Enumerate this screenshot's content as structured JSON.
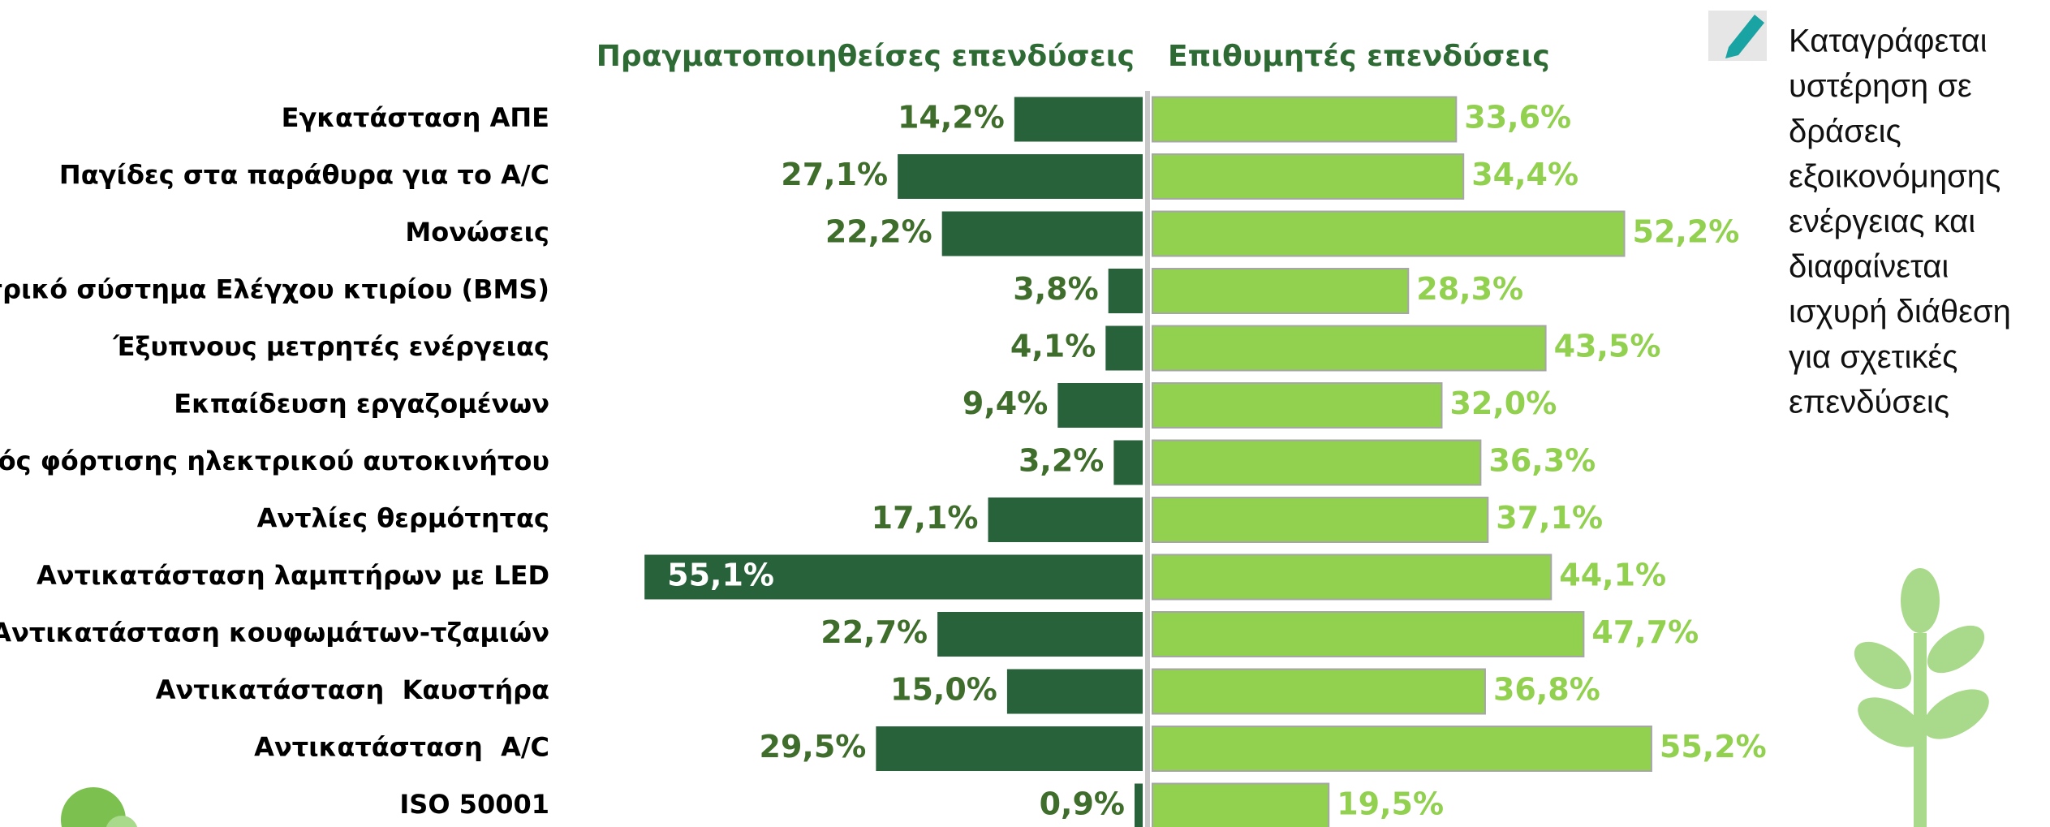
{
  "chart_data": {
    "type": "butterfly-bar",
    "categories": [
      "Εγκατάσταση ΑΠΕ",
      "Παγίδες στα παράθυρα για το A/C",
      "Μονώσεις",
      "Κεντρικό σύστημα Ελέγχου κτιρίου (BMS)",
      "Έξυπνους μετρητές ενέργειας",
      "Εκπαίδευση εργαζομένων",
      "Σταθμός φόρτισης ηλεκτρικού αυτοκινήτου",
      "Αντλίες θερμότητας",
      "Αντικατάσταση λαμπτήρων με LED",
      "Αντικατάσταση κουφωμάτων-τζαμιών",
      "Αντικατάσταση  Καυστήρα",
      "Αντικατάσταση  A/C",
      "ISO 50001"
    ],
    "series": [
      {
        "name": "Πραγματοποιηθείσες επενδύσεις",
        "color": "#28623a",
        "label_color": "#3f6e2c",
        "values": [
          14.2,
          27.1,
          22.2,
          3.8,
          4.1,
          9.4,
          3.2,
          17.1,
          55.1,
          22.7,
          15.0,
          29.5,
          0.9
        ],
        "value_labels": [
          "14,2%",
          "27,1%",
          "22,2%",
          "3,8%",
          "4,1%",
          "9,4%",
          "3,2%",
          "17,1%",
          "55,1%",
          "22,7%",
          "15,0%",
          "29,5%",
          "0,9%"
        ]
      },
      {
        "name": "Επιθυμητές επενδύσεις",
        "color": "#92d050",
        "label_color": "#92d050",
        "values": [
          33.6,
          34.4,
          52.2,
          28.3,
          43.5,
          32.0,
          36.3,
          37.1,
          44.1,
          47.7,
          36.8,
          55.2,
          19.5
        ],
        "value_labels": [
          "33,6%",
          "34,4%",
          "52,2%",
          "28,3%",
          "43,5%",
          "32,0%",
          "36,3%",
          "37,1%",
          "44,1%",
          "47,7%",
          "36,8%",
          "55,2%",
          "19,5%"
        ]
      }
    ],
    "annotation": [
      "Καταγράφεται",
      "υστέρηση σε",
      "δράσεις",
      "εξοικονόμησης",
      "ενέργειας και",
      "διαφαίνεται",
      "ισχυρή διάθεση",
      "για σχετικές",
      "επενδύσεις"
    ]
  }
}
